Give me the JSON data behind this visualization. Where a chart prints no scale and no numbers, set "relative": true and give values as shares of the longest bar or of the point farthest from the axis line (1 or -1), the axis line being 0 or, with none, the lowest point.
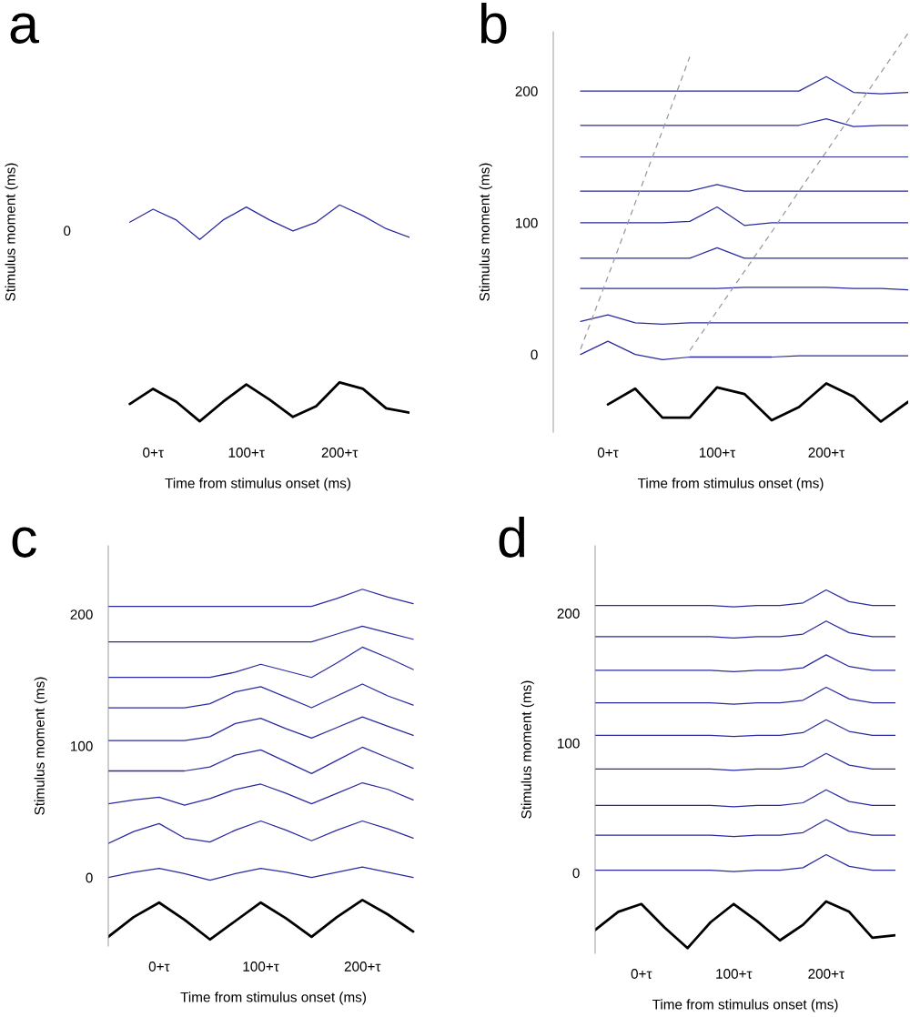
{
  "chart_data": [
    {
      "type": "line",
      "title": "a",
      "xlabel": "Time from stimulus onset (ms)",
      "ylabel": "Stimulus moment (ms)",
      "relative": true,
      "annotations": [
        "0"
      ],
      "categories": [
        null,
        null,
        "0+τ",
        null,
        null,
        null,
        "100+τ",
        null,
        null,
        null,
        "200+τ",
        null,
        null,
        null
      ],
      "series": [
        {
          "color": "#000000",
          "values": [
            null,
            0.08,
            0.15,
            0.09,
            0,
            0.09,
            0.17,
            0.1,
            0.02,
            0.07,
            0.18,
            0.15,
            0.06,
            0.04
          ]
        },
        {
          "color": "#2a2aa0",
          "values": [
            null,
            0.92,
            0.98,
            0.93,
            0.84,
            0.93,
            0.99,
            0.93,
            0.88,
            0.92,
            1.0,
            0.95,
            0.89,
            0.85
          ]
        }
      ]
    },
    {
      "type": "line",
      "title": "b",
      "xlabel": "Time from stimulus onset (ms)",
      "ylabel": "Stimulus moment (ms)",
      "ylim": [
        -59,
        245
      ],
      "yticks": [
        0,
        100,
        200
      ],
      "categories": [
        null,
        null,
        "0+τ",
        null,
        null,
        null,
        "100+τ",
        null,
        null,
        null,
        "200+τ",
        null,
        null,
        null
      ],
      "series": [
        {
          "color": "#000000",
          "values": [
            null,
            null,
            -38,
            -26,
            -48,
            -48,
            -25,
            -30,
            -50,
            -40,
            -22,
            -32,
            -51,
            -36
          ]
        },
        {
          "color": "#2a2aa0",
          "values": [
            null,
            0,
            10,
            0,
            -4,
            -2,
            -2,
            -2,
            -2,
            -1,
            -1,
            -1,
            -1,
            -1
          ]
        },
        {
          "color": "#2a2aa0",
          "values": [
            null,
            25,
            30,
            24,
            23,
            24,
            24,
            24,
            24,
            24,
            24,
            24,
            24,
            24
          ]
        },
        {
          "color": "#2a2aa0",
          "values": [
            null,
            50,
            50,
            50,
            50,
            50,
            50,
            51,
            51,
            51,
            51,
            50,
            50,
            49
          ]
        },
        {
          "color": "#2a2aa0",
          "values": [
            null,
            73,
            73,
            73,
            73,
            73,
            81,
            73,
            73,
            73,
            73,
            73,
            73,
            73
          ]
        },
        {
          "color": "#2a2aa0",
          "values": [
            null,
            100,
            100,
            100,
            100,
            101,
            112,
            98,
            100,
            100,
            100,
            100,
            100,
            100
          ]
        },
        {
          "color": "#2a2aa0",
          "values": [
            null,
            124,
            124,
            124,
            124,
            124,
            129,
            124,
            124,
            124,
            124,
            124,
            124,
            124
          ]
        },
        {
          "color": "#2a2aa0",
          "values": [
            null,
            150,
            150,
            150,
            150,
            150,
            150,
            150,
            150,
            150,
            150,
            150,
            150,
            150
          ]
        },
        {
          "color": "#2a2aa0",
          "values": [
            null,
            174,
            174,
            174,
            174,
            174,
            174,
            174,
            174,
            174,
            179,
            173,
            174,
            174
          ]
        },
        {
          "color": "#2a2aa0",
          "values": [
            null,
            200,
            200,
            200,
            200,
            200,
            200,
            200,
            200,
            200,
            211,
            199,
            198,
            199
          ]
        },
        {
          "color": "#999999",
          "line_style": "dashed",
          "values": [
            null,
            4,
            59,
            115,
            170,
            226,
            null,
            null,
            null,
            null,
            null,
            null,
            null,
            null
          ]
        },
        {
          "color": "#999999",
          "line_style": "dashed",
          "values": [
            null,
            null,
            null,
            null,
            null,
            3,
            33,
            63,
            93,
            124,
            154,
            184,
            214,
            244
          ]
        }
      ]
    },
    {
      "type": "line",
      "title": "c",
      "xlabel": "Time from stimulus onset (ms)",
      "ylabel": "Stimulus moment (ms)",
      "ylim": [
        -52,
        252
      ],
      "yticks": [
        0,
        100,
        200
      ],
      "categories": [
        null,
        null,
        "0+τ",
        null,
        null,
        null,
        "100+τ",
        null,
        null,
        null,
        "200+τ",
        null,
        null,
        null
      ],
      "series": [
        {
          "color": "#000000",
          "values": [
            -45,
            -30,
            -19,
            -32,
            -47,
            -33,
            -19,
            -31,
            -45,
            -30,
            -17,
            -28,
            -41,
            null
          ]
        },
        {
          "color": "#2a2aa0",
          "values": [
            0,
            4,
            7,
            3,
            -2,
            3,
            7,
            4,
            0,
            4,
            8,
            4,
            0,
            null
          ]
        },
        {
          "color": "#2a2aa0",
          "values": [
            26,
            35,
            41,
            30,
            27,
            36,
            43,
            36,
            28,
            36,
            43,
            37,
            30,
            null
          ]
        },
        {
          "color": "#2a2aa0",
          "values": [
            56,
            59,
            61,
            55,
            60,
            67,
            71,
            64,
            56,
            64,
            72,
            67,
            59,
            null
          ]
        },
        {
          "color": "#2a2aa0",
          "values": [
            81,
            81,
            81,
            81,
            84,
            93,
            97,
            88,
            79,
            89,
            99,
            91,
            83,
            null
          ]
        },
        {
          "color": "#2a2aa0",
          "values": [
            104,
            104,
            104,
            104,
            107,
            117,
            121,
            113,
            106,
            114,
            122,
            115,
            108,
            null
          ]
        },
        {
          "color": "#2a2aa0",
          "values": [
            129,
            129,
            129,
            129,
            132,
            141,
            145,
            137,
            129,
            138,
            147,
            138,
            131,
            null
          ]
        },
        {
          "color": "#2a2aa0",
          "values": [
            152,
            152,
            152,
            152,
            152,
            156,
            162,
            157,
            152,
            163,
            175,
            167,
            158,
            null
          ]
        },
        {
          "color": "#2a2aa0",
          "values": [
            179,
            179,
            179,
            179,
            179,
            179,
            179,
            179,
            179,
            185,
            191,
            186,
            181,
            null
          ]
        },
        {
          "color": "#2a2aa0",
          "values": [
            206,
            206,
            206,
            206,
            206,
            206,
            206,
            206,
            206,
            212,
            219,
            213,
            208,
            null
          ]
        }
      ]
    },
    {
      "type": "line",
      "title": "d",
      "xlabel": "Time from stimulus onset (ms)",
      "ylabel": "Stimulus moment (ms)",
      "ylim": [
        -62,
        252
      ],
      "yticks": [
        0,
        100,
        200
      ],
      "categories": [
        null,
        null,
        "0+τ",
        null,
        null,
        null,
        "100+τ",
        null,
        null,
        null,
        "200+τ",
        null,
        null,
        null
      ],
      "series": [
        {
          "color": "#000000",
          "values": [
            -44,
            -30,
            -24,
            -42,
            -58,
            -38,
            -24,
            -37,
            -52,
            -40,
            -22,
            -30,
            -50,
            -48
          ]
        },
        {
          "color": "#2a2aa0",
          "values": [
            2,
            2,
            2,
            2,
            2,
            2,
            1,
            2,
            2,
            4,
            14,
            5,
            2,
            2
          ]
        },
        {
          "color": "#2a2aa0",
          "values": [
            29,
            29,
            29,
            29,
            29,
            29,
            28,
            29,
            29,
            31,
            41,
            32,
            29,
            29
          ]
        },
        {
          "color": "#2a2aa0",
          "values": [
            52,
            52,
            52,
            52,
            52,
            52,
            51,
            52,
            52,
            54,
            64,
            55,
            52,
            52
          ]
        },
        {
          "color": "#2a2aa0",
          "values": [
            80,
            80,
            80,
            80,
            80,
            80,
            79,
            80,
            80,
            82,
            92,
            83,
            80,
            80
          ]
        },
        {
          "color": "#2a2aa0",
          "values": [
            106,
            106,
            106,
            106,
            106,
            106,
            105,
            106,
            106,
            108,
            118,
            109,
            106,
            106
          ]
        },
        {
          "color": "#2a2aa0",
          "values": [
            131,
            131,
            131,
            131,
            131,
            131,
            130,
            131,
            131,
            133,
            143,
            134,
            131,
            131
          ]
        },
        {
          "color": "#2a2aa0",
          "values": [
            156,
            156,
            156,
            156,
            156,
            156,
            155,
            156,
            156,
            158,
            168,
            159,
            156,
            156
          ]
        },
        {
          "color": "#2a2aa0",
          "values": [
            182,
            182,
            182,
            182,
            182,
            182,
            181,
            182,
            182,
            184,
            194,
            185,
            182,
            182
          ]
        },
        {
          "color": "#2a2aa0",
          "values": [
            206,
            206,
            206,
            206,
            206,
            206,
            205,
            206,
            206,
            208,
            218,
            209,
            206,
            206
          ]
        }
      ]
    }
  ]
}
